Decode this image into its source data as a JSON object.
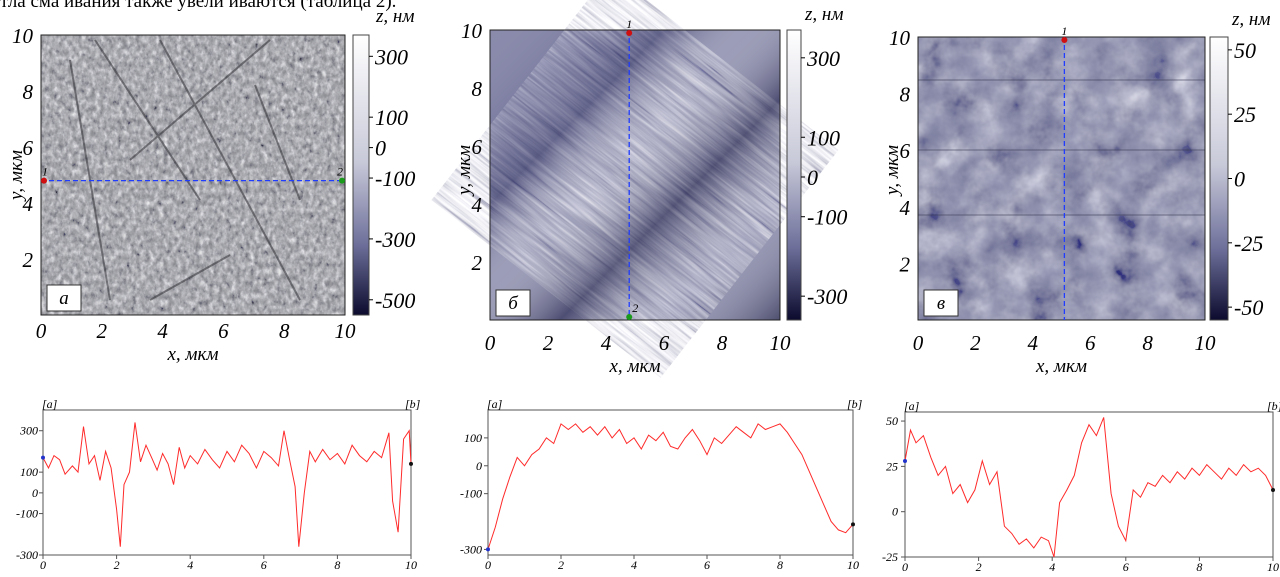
{
  "page_text": {
    "top_line": "тла сма ивания также увели иваются (таблица 2)."
  },
  "chart_data": [
    {
      "type": "heatmap",
      "panel_label": "а",
      "xlabel": "x, мкм",
      "ylabel": "y, мкм",
      "xlim": [
        0,
        10
      ],
      "ylim": [
        0,
        10
      ],
      "xticks": [
        "0",
        "2",
        "4",
        "6",
        "8",
        "10"
      ],
      "yticks": [
        "2",
        "4",
        "6",
        "8",
        "10"
      ],
      "colorbar": {
        "label": "z, нм",
        "ticks": [
          "300",
          "100",
          "0",
          "-100",
          "-300",
          "-500"
        ],
        "range": [
          -550,
          370
        ]
      },
      "scan_line": {
        "orientation": "horizontal",
        "at": 4.8,
        "markers": [
          "1",
          "2"
        ]
      }
    },
    {
      "type": "heatmap",
      "panel_label": "б",
      "xlabel": "x, мкм",
      "ylabel": "y, мкм",
      "xlim": [
        0,
        10
      ],
      "ylim": [
        0,
        10
      ],
      "xticks": [
        "0",
        "2",
        "4",
        "6",
        "8",
        "10"
      ],
      "yticks": [
        "2",
        "4",
        "6",
        "8",
        "10"
      ],
      "colorbar": {
        "label": "z, нм",
        "ticks": [
          "300",
          "100",
          "0",
          "-100",
          "-300"
        ],
        "range": [
          -360,
          370
        ]
      },
      "scan_line": {
        "orientation": "vertical",
        "at": 4.8,
        "markers": [
          "1",
          "2"
        ]
      }
    },
    {
      "type": "heatmap",
      "panel_label": "в",
      "xlabel": "x, мкм",
      "ylabel": "y, мкм",
      "xlim": [
        0,
        10
      ],
      "ylim": [
        0,
        10
      ],
      "xticks": [
        "0",
        "2",
        "4",
        "6",
        "8",
        "10"
      ],
      "yticks": [
        "2",
        "4",
        "6",
        "8",
        "10"
      ],
      "colorbar": {
        "label": "z, нм",
        "ticks": [
          "50",
          "25",
          "0",
          "-25",
          "-50"
        ],
        "range": [
          -55,
          55
        ]
      },
      "scan_line": {
        "orientation": "vertical",
        "at": 5.1,
        "markers": [
          "1"
        ]
      }
    },
    {
      "type": "line",
      "corner_labels": [
        "[a]",
        "[b]"
      ],
      "xlim": [
        0,
        10
      ],
      "ylim": [
        -300,
        400
      ],
      "xticks": [
        "0",
        "2",
        "4",
        "6",
        "8",
        "10"
      ],
      "yticks": [
        "300",
        "100",
        "0",
        "-100",
        "-300"
      ],
      "series": [
        {
          "color": "#ff2a2a",
          "x": [
            0,
            0.15,
            0.3,
            0.45,
            0.6,
            0.8,
            0.95,
            1.1,
            1.25,
            1.4,
            1.55,
            1.7,
            1.85,
            2.0,
            2.1,
            2.2,
            2.35,
            2.5,
            2.65,
            2.8,
            2.95,
            3.1,
            3.25,
            3.4,
            3.55,
            3.7,
            3.85,
            4.0,
            4.2,
            4.4,
            4.6,
            4.8,
            5.0,
            5.2,
            5.4,
            5.6,
            5.8,
            6.0,
            6.2,
            6.4,
            6.55,
            6.7,
            6.85,
            6.95,
            7.1,
            7.25,
            7.4,
            7.6,
            7.8,
            8.0,
            8.2,
            8.4,
            8.6,
            8.8,
            9.0,
            9.2,
            9.4,
            9.5,
            9.65,
            9.8,
            9.95,
            10
          ],
          "y": [
            170,
            120,
            180,
            160,
            90,
            130,
            100,
            320,
            140,
            180,
            60,
            200,
            120,
            -80,
            -260,
            40,
            100,
            340,
            150,
            230,
            170,
            110,
            190,
            140,
            40,
            220,
            120,
            180,
            140,
            210,
            160,
            120,
            200,
            150,
            230,
            190,
            120,
            200,
            170,
            130,
            300,
            160,
            30,
            -260,
            0,
            200,
            150,
            210,
            160,
            190,
            140,
            230,
            180,
            150,
            200,
            170,
            290,
            -40,
            -190,
            260,
            300,
            140
          ]
        }
      ]
    },
    {
      "type": "line",
      "corner_labels": [
        "[a]",
        "[b]"
      ],
      "xlim": [
        0,
        10
      ],
      "ylim": [
        -320,
        200
      ],
      "xticks": [
        "0",
        "2",
        "4",
        "6",
        "8",
        "10"
      ],
      "yticks": [
        "100",
        "0",
        "-100",
        "-300"
      ],
      "series": [
        {
          "color": "#ff2a2a",
          "x": [
            0,
            0.2,
            0.4,
            0.6,
            0.8,
            1.0,
            1.2,
            1.4,
            1.6,
            1.8,
            2.0,
            2.2,
            2.4,
            2.6,
            2.8,
            3.0,
            3.2,
            3.4,
            3.6,
            3.8,
            4.0,
            4.2,
            4.4,
            4.6,
            4.8,
            5.0,
            5.2,
            5.4,
            5.6,
            5.8,
            6.0,
            6.2,
            6.4,
            6.6,
            6.8,
            7.0,
            7.2,
            7.4,
            7.6,
            7.8,
            8.0,
            8.2,
            8.4,
            8.6,
            8.8,
            9.0,
            9.2,
            9.4,
            9.6,
            9.8,
            10
          ],
          "y": [
            -300,
            -220,
            -120,
            -40,
            30,
            0,
            40,
            60,
            100,
            80,
            150,
            130,
            150,
            120,
            140,
            110,
            140,
            100,
            130,
            80,
            100,
            60,
            110,
            90,
            120,
            70,
            60,
            100,
            130,
            90,
            40,
            100,
            80,
            110,
            140,
            120,
            100,
            150,
            130,
            140,
            150,
            120,
            80,
            40,
            -20,
            -80,
            -140,
            -200,
            -230,
            -240,
            -210
          ]
        }
      ]
    },
    {
      "type": "line",
      "corner_labels": [
        "[a]",
        "[b]"
      ],
      "xlim": [
        0,
        10
      ],
      "ylim": [
        -25,
        55
      ],
      "xticks": [
        "0",
        "2",
        "4",
        "6",
        "8",
        "10"
      ],
      "yticks": [
        "50",
        "25",
        "0",
        "-25"
      ],
      "series": [
        {
          "color": "#ff2a2a",
          "x": [
            0,
            0.15,
            0.3,
            0.5,
            0.7,
            0.9,
            1.1,
            1.3,
            1.5,
            1.7,
            1.9,
            2.1,
            2.3,
            2.5,
            2.7,
            2.9,
            3.1,
            3.3,
            3.5,
            3.7,
            3.9,
            4.05,
            4.2,
            4.4,
            4.6,
            4.8,
            5.0,
            5.2,
            5.4,
            5.6,
            5.8,
            6.0,
            6.2,
            6.4,
            6.6,
            6.8,
            7.0,
            7.2,
            7.4,
            7.6,
            7.8,
            8.0,
            8.2,
            8.4,
            8.6,
            8.8,
            9.0,
            9.2,
            9.4,
            9.6,
            9.8,
            10
          ],
          "y": [
            28,
            45,
            38,
            42,
            30,
            20,
            25,
            10,
            15,
            5,
            12,
            28,
            15,
            22,
            -8,
            -12,
            -18,
            -15,
            -20,
            -14,
            -16,
            -25,
            5,
            12,
            20,
            38,
            48,
            42,
            52,
            10,
            -8,
            -16,
            12,
            8,
            16,
            14,
            20,
            16,
            22,
            18,
            24,
            20,
            26,
            22,
            18,
            24,
            20,
            26,
            22,
            24,
            20,
            12
          ]
        }
      ]
    }
  ]
}
